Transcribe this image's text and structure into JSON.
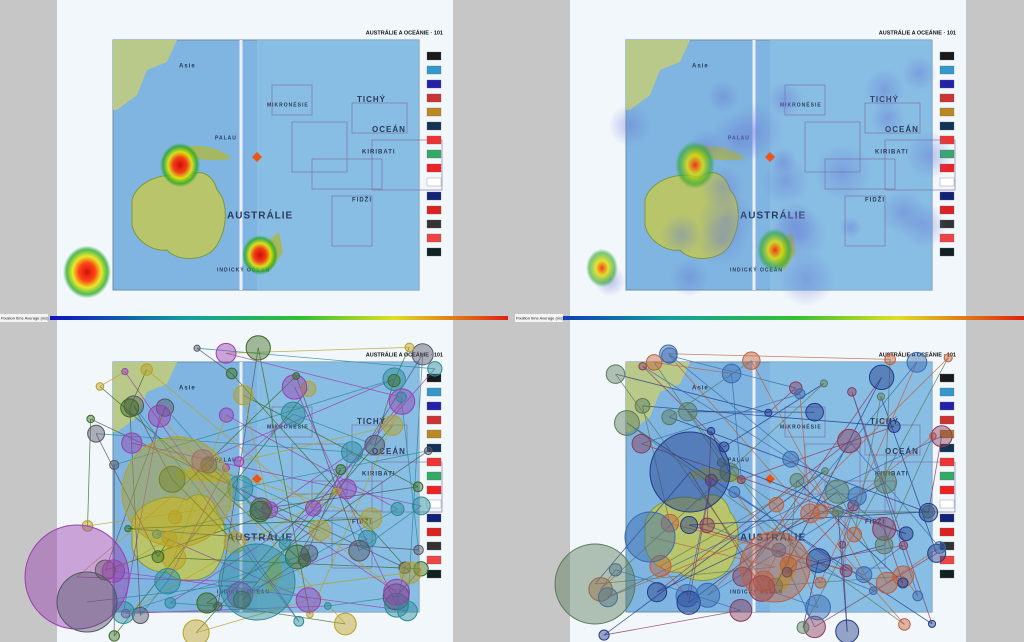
{
  "panels": [
    {
      "title": "AUSTRÁLIE A OCEÁNIE · 101",
      "labels": [
        "Asie",
        "AUSTRÁLIE",
        "TICHÝ",
        "OCEÁN",
        "KIRIBATI",
        "FIDŽI",
        "INDICKÝ OCEÁN",
        "PALAU",
        "MIKRONÉSIE"
      ]
    },
    {
      "title": "AUSTRÁLIE A OCEÁNIE · 101",
      "labels": [
        "Asie",
        "AUSTRÁLIE",
        "TICHÝ",
        "OCEÁN",
        "KIRIBATI",
        "FIDŽI",
        "INDICKÝ OCEÁN",
        "PALAU",
        "MIKRONÉSIE"
      ]
    },
    {
      "title": "AUSTRÁLIE A OCEÁNIE · 101",
      "labels": [
        "Asie",
        "AUSTRÁLIE",
        "TICHÝ",
        "OCEÁN",
        "KIRIBATI",
        "FIDŽI",
        "INDICKÝ OCEÁN",
        "PALAU",
        "MIKRONÉSIE"
      ]
    },
    {
      "title": "AUSTRÁLIE A OCEÁNIE · 101",
      "labels": [
        "Asie",
        "AUSTRÁLIE",
        "TICHÝ",
        "OCEÁN",
        "KIRIBATI",
        "FIDŽI",
        "INDICKÝ OCEÁN",
        "PALAU",
        "MIKRONÉSIE"
      ]
    }
  ],
  "scales": [
    {
      "label": "Fixation time Average (ms)"
    },
    {
      "label": "Fixation time Average (ms)"
    }
  ]
}
